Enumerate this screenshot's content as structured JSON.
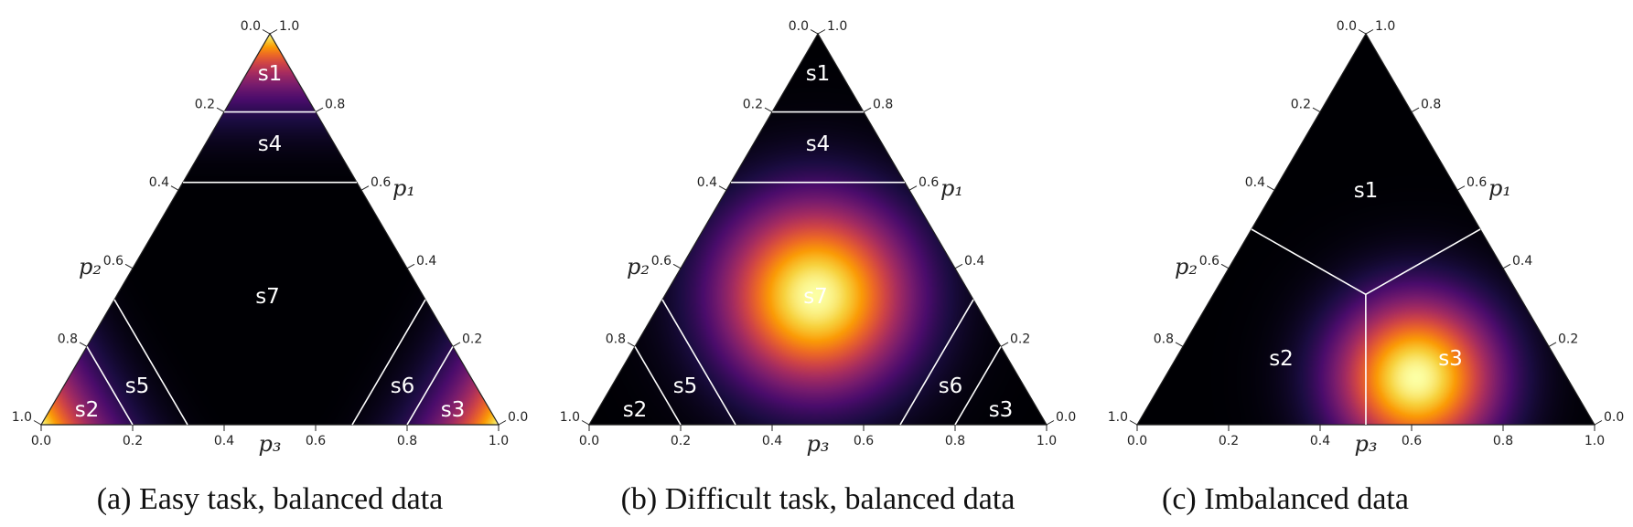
{
  "chart_data": [
    {
      "type": "heatmap",
      "subtype": "ternary",
      "caption": "(a) Easy task, balanced data",
      "colormap": "inferno",
      "axes": [
        "p1",
        "p2",
        "p3"
      ],
      "axis_ranges": {
        "p1": [
          0,
          1
        ],
        "p2": [
          0,
          1
        ],
        "p3": [
          0,
          1
        ]
      },
      "density": {
        "peaks": "corners",
        "center_value": "low"
      },
      "ticks": [
        0.0,
        0.2,
        0.4,
        0.6,
        0.8,
        1.0
      ],
      "boundaries": [
        {
          "between": [
            "s1",
            "s4"
          ],
          "p1": 0.8
        },
        {
          "between": [
            "s4",
            "s7"
          ],
          "p1": 0.62
        },
        {
          "between": [
            "s2",
            "s5"
          ],
          "p2": 0.8
        },
        {
          "between": [
            "s5",
            "s7"
          ],
          "p2": 0.68
        },
        {
          "between": [
            "s3",
            "s6"
          ],
          "p3": 0.8
        },
        {
          "between": [
            "s6",
            "s7"
          ],
          "p3": 0.68
        }
      ],
      "regions": [
        {
          "label": "s1",
          "p1": 0.9,
          "p2": 0.05,
          "p3": 0.05
        },
        {
          "label": "s4",
          "p1": 0.72,
          "p2": 0.14,
          "p3": 0.14
        },
        {
          "label": "s7",
          "p1": 0.33,
          "p2": 0.34,
          "p3": 0.33
        },
        {
          "label": "s2",
          "p1": 0.04,
          "p2": 0.88,
          "p3": 0.08
        },
        {
          "label": "s5",
          "p1": 0.1,
          "p2": 0.74,
          "p3": 0.16
        },
        {
          "label": "s6",
          "p1": 0.1,
          "p2": 0.16,
          "p3": 0.74
        },
        {
          "label": "s3",
          "p1": 0.04,
          "p2": 0.08,
          "p3": 0.88
        }
      ]
    },
    {
      "type": "heatmap",
      "subtype": "ternary",
      "caption": "(b) Difficult task, balanced data",
      "colormap": "inferno",
      "axes": [
        "p1",
        "p2",
        "p3"
      ],
      "axis_ranges": {
        "p1": [
          0,
          1
        ],
        "p2": [
          0,
          1
        ],
        "p3": [
          0,
          1
        ]
      },
      "density": {
        "peak": {
          "p1": 0.33,
          "p2": 0.34,
          "p3": 0.33
        }
      },
      "ticks": [
        0.0,
        0.2,
        0.4,
        0.6,
        0.8,
        1.0
      ],
      "boundaries": [
        {
          "between": [
            "s1",
            "s4"
          ],
          "p1": 0.8
        },
        {
          "between": [
            "s4",
            "s7"
          ],
          "p1": 0.62
        },
        {
          "between": [
            "s2",
            "s5"
          ],
          "p2": 0.8
        },
        {
          "between": [
            "s5",
            "s7"
          ],
          "p2": 0.68
        },
        {
          "between": [
            "s3",
            "s6"
          ],
          "p3": 0.8
        },
        {
          "between": [
            "s6",
            "s7"
          ],
          "p3": 0.68
        }
      ],
      "regions": [
        {
          "label": "s1",
          "p1": 0.9,
          "p2": 0.05,
          "p3": 0.05
        },
        {
          "label": "s4",
          "p1": 0.72,
          "p2": 0.14,
          "p3": 0.14
        },
        {
          "label": "s7",
          "p1": 0.33,
          "p2": 0.34,
          "p3": 0.33
        },
        {
          "label": "s2",
          "p1": 0.04,
          "p2": 0.88,
          "p3": 0.08
        },
        {
          "label": "s5",
          "p1": 0.1,
          "p2": 0.74,
          "p3": 0.16
        },
        {
          "label": "s6",
          "p1": 0.1,
          "p2": 0.16,
          "p3": 0.74
        },
        {
          "label": "s3",
          "p1": 0.04,
          "p2": 0.08,
          "p3": 0.88
        }
      ]
    },
    {
      "type": "heatmap",
      "subtype": "ternary",
      "caption": "(c) Imbalanced data",
      "colormap": "inferno",
      "axes": [
        "p1",
        "p2",
        "p3"
      ],
      "axis_ranges": {
        "p1": [
          0,
          1
        ],
        "p2": [
          0,
          1
        ],
        "p3": [
          0,
          1
        ]
      },
      "density": {
        "peak": {
          "p1": 0.12,
          "p2": 0.33,
          "p3": 0.55
        }
      },
      "ticks": [
        0.0,
        0.2,
        0.4,
        0.6,
        0.8,
        1.0
      ],
      "boundaries": [
        {
          "between": [
            "s1",
            "s2"
          ],
          "from": {
            "p1": 0.3333,
            "p2": 0.3333,
            "p3": 0.3333
          },
          "to": {
            "p1": 0.5,
            "p2": 0.5,
            "p3": 0.0
          }
        },
        {
          "between": [
            "s1",
            "s3"
          ],
          "from": {
            "p1": 0.3333,
            "p2": 0.3333,
            "p3": 0.3333
          },
          "to": {
            "p1": 0.5,
            "p2": 0.0,
            "p3": 0.5
          }
        },
        {
          "between": [
            "s2",
            "s3"
          ],
          "from": {
            "p1": 0.3333,
            "p2": 0.3333,
            "p3": 0.3333
          },
          "to": {
            "p1": 0.0,
            "p2": 0.5,
            "p3": 0.5
          }
        }
      ],
      "regions": [
        {
          "label": "s1",
          "p1": 0.6,
          "p2": 0.2,
          "p3": 0.2
        },
        {
          "label": "s2",
          "p1": 0.17,
          "p2": 0.6,
          "p3": 0.23
        },
        {
          "label": "s3",
          "p1": 0.17,
          "p2": 0.23,
          "p3": 0.6
        }
      ]
    }
  ],
  "labels": {
    "p1": "p₁",
    "p2": "p₂",
    "p3": "p₃",
    "ticks": [
      "0.0",
      "0.2",
      "0.4",
      "0.6",
      "0.8",
      "1.0"
    ]
  },
  "colors": {
    "inferno": [
      "#000004",
      "#1b0c41",
      "#4a0c6b",
      "#781c6d",
      "#a52c60",
      "#cf4446",
      "#ed6925",
      "#fb9b06",
      "#f7d13d",
      "#fcffa4"
    ],
    "boundary": "#ffffff",
    "region_label": "#ffffff"
  }
}
